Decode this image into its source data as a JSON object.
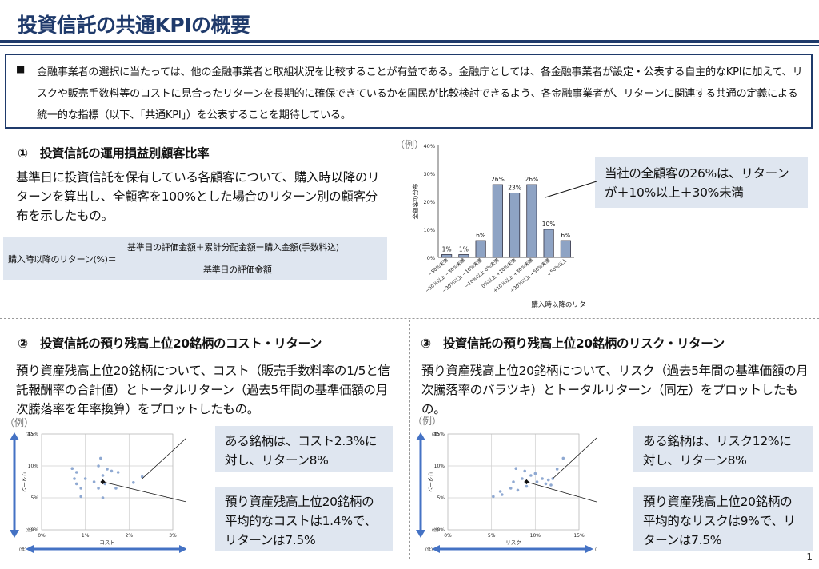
{
  "title": "投資信託の共通KPIの概要",
  "intro": {
    "bullet": "■",
    "text": "金融事業者の選択に当たっては、他の金融事業者と取組状況を比較することが有益である。金融庁としては、各金融事業者が設定・公表する自主的なKPIに加えて、リスクや販売手数料等のコストに見合ったリターンを長期的に確保できているかを国民が比較検討できるよう、各金融事業者が、リターンに関連する共通の定義による統一的な指標（以下、「共通KPI」）を公表することを期待している。"
  },
  "section1": {
    "heading": "①　投資信託の運用損益別顧客比率",
    "body": "基準日に投資信託を保有している各顧客について、購入時以降のリターンを算出し、全顧客を100%とした場合のリターン別の顧客分布を示したもの。",
    "formula": {
      "label": "購入時以降のリターン(%)＝",
      "numerator": "基準日の評価金額＋累計分配金額ー購入金額(手数料込)",
      "denominator": "基準日の評価金額"
    },
    "example_label": "（例）",
    "callout": "当社の全顧客の26%は、リターンが＋10%以上＋30%未満"
  },
  "section2": {
    "heading": "②　投資信託の預り残高上位20銘柄のコスト・リターン",
    "body": "預り資産残高上位20銘柄について、コスト（販売手数料率の1/5と信託報酬率の合計値）とトータルリターン（過去5年間の基準価額の月次騰落率を年率換算）をプロットしたもの。",
    "example_label": "（例）",
    "callout1": "ある銘柄は、コスト2.3%に対し、リターン8%",
    "callout2": "預り資産残高上位20銘柄の平均的なコストは1.4%で、リターンは7.5%",
    "axis_high": "(高)",
    "axis_low": "(低)"
  },
  "section3": {
    "heading": "③　投資信託の預り残高上位20銘柄のリスク・リターン",
    "body": "預り資産残高上位20銘柄について、リスク（過去5年間の基準価額の月次騰落率のバラツキ）とトータルリターン（同左）をプロットしたもの。",
    "example_label": "（例）",
    "callout1": "ある銘柄は、リスク12%に対し、リターン8%",
    "callout2": "預り資産残高上位20銘柄の平均的なリスクは9%で、リターンは7.5%",
    "axis_high": "(高)",
    "axis_low": "(低)"
  },
  "page_number": "1",
  "colors": {
    "brand": "#1f3a6b",
    "bar": "#8ea3c4",
    "callout": "#dfe6f0",
    "arrow": "#4472c4",
    "dot": "#8fa9d2"
  },
  "chart_data": [
    {
      "type": "bar",
      "categories": [
        "−50%未満",
        "−50%以上 −30%未満",
        "−30%以上 −10%未満",
        "−10%以上 0%未満",
        "0%以上 +10%未満",
        "+10%以上 +30%未満",
        "+30%以上 +50%未満",
        "+50%以上"
      ],
      "values": [
        1,
        1,
        6,
        26,
        23,
        26,
        10,
        6
      ],
      "value_labels": [
        "1%",
        "1%",
        "6%",
        "26%",
        "23%",
        "26%",
        "10%",
        "6%"
      ],
      "xlabel": "購入時以降のリターン(%)",
      "ylabel": "全顧客の分布",
      "ylim": [
        0,
        40
      ],
      "yticks": [
        "0%",
        "10%",
        "20%",
        "30%",
        "40%"
      ],
      "grid": false
    },
    {
      "type": "scatter",
      "xlabel": "コスト",
      "ylabel": "リターン",
      "xlim": [
        0,
        3
      ],
      "ylim": [
        0,
        15
      ],
      "xticks": [
        "0%",
        "1%",
        "2%",
        "3%"
      ],
      "yticks": [
        "0%",
        "5%",
        "10%",
        "15%"
      ],
      "points": [
        [
          0.7,
          9.6
        ],
        [
          0.8,
          9
        ],
        [
          0.75,
          8
        ],
        [
          0.8,
          7.2
        ],
        [
          0.9,
          6.5
        ],
        [
          0.9,
          5.2
        ],
        [
          1.0,
          8
        ],
        [
          1.2,
          7.5
        ],
        [
          1.3,
          10
        ],
        [
          1.3,
          6.5
        ],
        [
          1.35,
          11.2
        ],
        [
          1.4,
          8.5
        ],
        [
          1.45,
          7.2
        ],
        [
          1.5,
          9.5
        ],
        [
          1.4,
          5
        ],
        [
          1.6,
          9.2
        ],
        [
          1.7,
          6.5
        ],
        [
          1.75,
          9
        ],
        [
          2.1,
          7.4
        ],
        [
          2.3,
          8.3
        ]
      ],
      "highlight": [
        2.3,
        8
      ],
      "mean": [
        1.4,
        7.5
      ],
      "grid": true
    },
    {
      "type": "scatter",
      "xlabel": "リスク",
      "ylabel": "リターン",
      "xlim": [
        0,
        15
      ],
      "ylim": [
        0,
        15
      ],
      "xticks": [
        "0%",
        "5%",
        "10%",
        "15%"
      ],
      "yticks": [
        "0%",
        "5%",
        "10%",
        "15%"
      ],
      "points": [
        [
          5.2,
          5.2
        ],
        [
          6,
          6
        ],
        [
          6.2,
          5.5
        ],
        [
          7.2,
          6.5
        ],
        [
          7.5,
          7.5
        ],
        [
          7.8,
          9.6
        ],
        [
          8,
          6.2
        ],
        [
          8.5,
          8
        ],
        [
          8.8,
          9.2
        ],
        [
          9,
          6.8
        ],
        [
          9.5,
          8.5
        ],
        [
          10,
          8.8
        ],
        [
          10.2,
          7.5
        ],
        [
          10.8,
          8
        ],
        [
          11.2,
          7.2
        ],
        [
          11.5,
          7.8
        ],
        [
          11.8,
          7
        ],
        [
          12,
          8
        ],
        [
          12.5,
          9.5
        ],
        [
          13.2,
          11.2
        ]
      ],
      "highlight": [
        12,
        8
      ],
      "mean": [
        9,
        7.5
      ],
      "grid": true
    }
  ]
}
